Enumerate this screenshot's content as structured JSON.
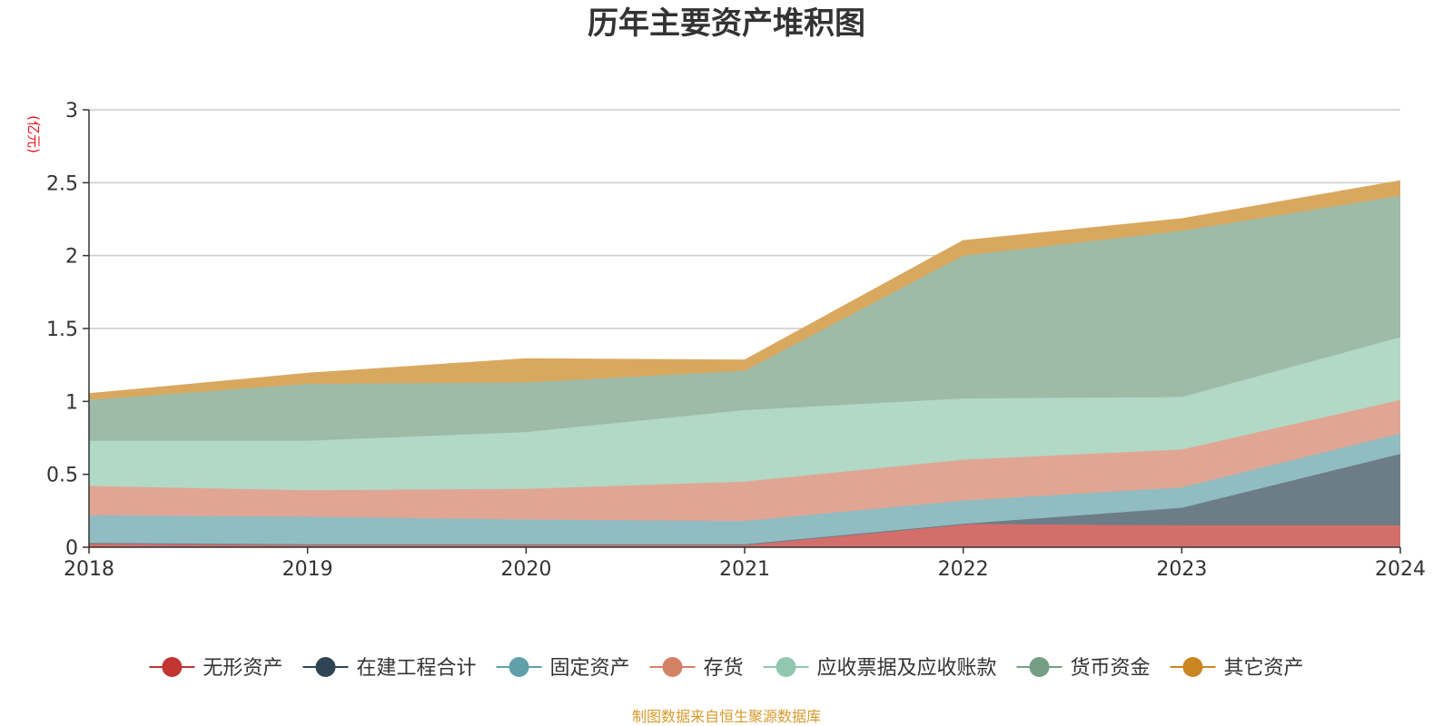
{
  "chart_data": {
    "type": "area",
    "stacked": true,
    "title": "历年主要资产堆积图",
    "unit": "(亿元)",
    "x": [
      "2018",
      "2019",
      "2020",
      "2021",
      "2022",
      "2023",
      "2024"
    ],
    "ylim": [
      0,
      3
    ],
    "yticks": [
      "0",
      "0.5",
      "1",
      "1.5",
      "2",
      "2.5",
      "3"
    ],
    "grid": true,
    "legend_position": "bottom",
    "series": [
      {
        "name": "无形资产",
        "color": "#c23531",
        "fill": "#d46e6b",
        "values": [
          0.03,
          0.02,
          0.02,
          0.02,
          0.16,
          0.15,
          0.15
        ]
      },
      {
        "name": "在建工程合计",
        "color": "#2f4554",
        "fill": "#6d7d88",
        "values": [
          0.0,
          0.0,
          0.0,
          0.0,
          0.0,
          0.12,
          0.49
        ]
      },
      {
        "name": "固定资产",
        "color": "#61a0a8",
        "fill": "#90bcc2",
        "values": [
          0.19,
          0.19,
          0.17,
          0.16,
          0.16,
          0.14,
          0.14
        ]
      },
      {
        "name": "存货",
        "color": "#d48265",
        "fill": "#e1a693",
        "values": [
          0.2,
          0.18,
          0.21,
          0.27,
          0.28,
          0.26,
          0.23
        ]
      },
      {
        "name": "应收票据及应收账款",
        "color": "#91c7ae",
        "fill": "#b2d8c6",
        "values": [
          0.31,
          0.34,
          0.39,
          0.49,
          0.42,
          0.36,
          0.43
        ]
      },
      {
        "name": "货币资金",
        "color": "#749f83",
        "fill": "#9ebba8",
        "values": [
          0.28,
          0.39,
          0.34,
          0.27,
          0.98,
          1.14,
          0.97
        ]
      },
      {
        "name": "其它资产",
        "color": "#ca8622",
        "fill": "#d9a85f",
        "values": [
          0.04,
          0.07,
          0.16,
          0.07,
          0.1,
          0.08,
          0.1
        ]
      }
    ]
  },
  "footer": {
    "source": "制图数据来自恒生聚源数据库"
  }
}
